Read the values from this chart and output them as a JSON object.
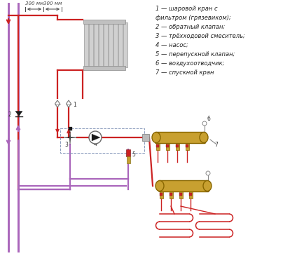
{
  "bg_color": "#ffffff",
  "legend_lines": [
    "1 — шаровой кран с",
    "фильтром (грязевиком);",
    "2 — обратный клапан;",
    "3 — трёхходовой смеситель;",
    "4 — насос;",
    "5 — перепускной клапан;",
    "6 — воздухоотводчик;",
    "7 — спускной кран"
  ],
  "pipe_red": "#cc2222",
  "pipe_purple": "#aa66bb",
  "gold": "#c8a030",
  "dark": "#1a1a1a",
  "gray": "#aaaaaa",
  "dim_text_color": "#444444"
}
